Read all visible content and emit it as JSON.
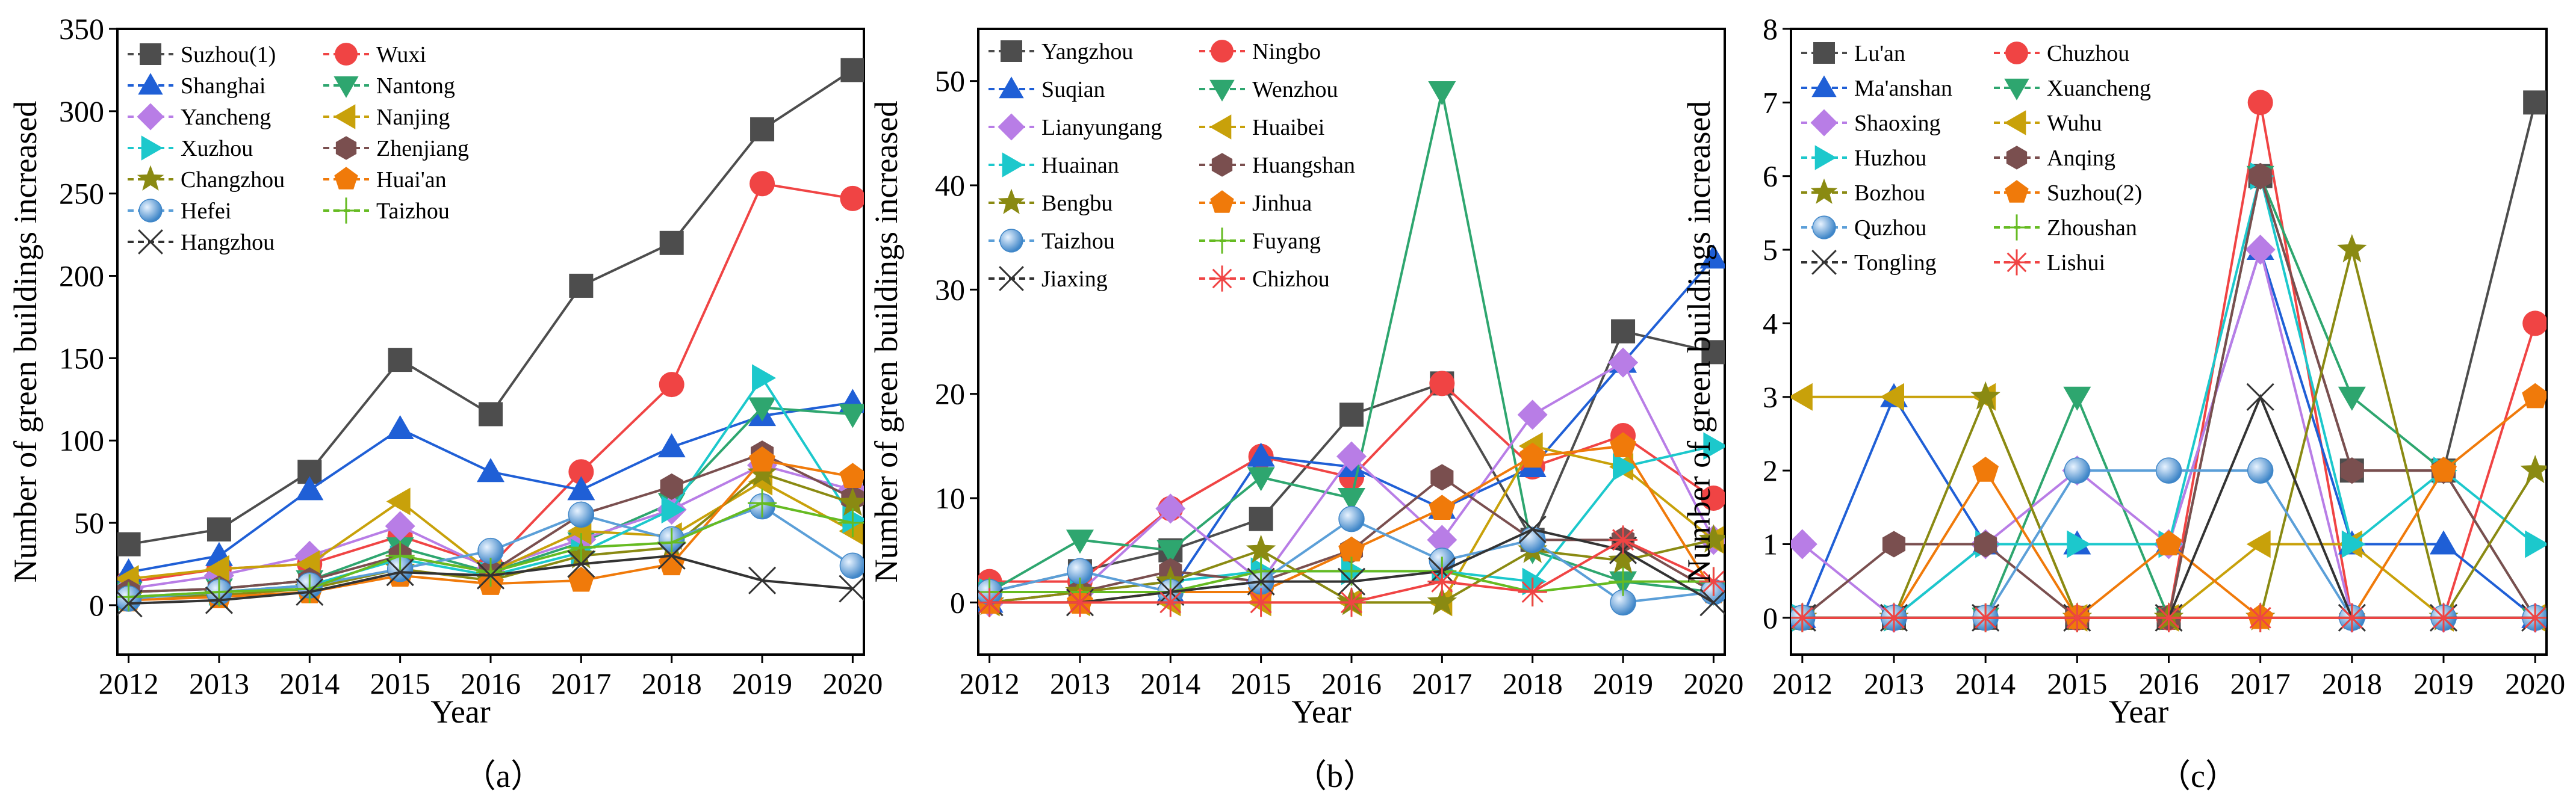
{
  "captions": [
    "（a）",
    "（b）",
    "（c）"
  ],
  "chart_data": [
    {
      "type": "line",
      "panel_label": "（a）",
      "xlabel": "Year",
      "ylabel": "Number of green buildings increased",
      "ylim": [
        -30,
        350
      ],
      "yticks": [
        0,
        50,
        100,
        150,
        200,
        250,
        300,
        350
      ],
      "x": [
        2012,
        2013,
        2014,
        2015,
        2016,
        2017,
        2018,
        2019,
        2020
      ],
      "legend_position": "top-left",
      "series": [
        {
          "name": "Suzhou(1)",
          "color": "#4d4d4d",
          "marker": "square",
          "values": [
            37,
            46,
            81,
            149,
            116,
            194,
            220,
            289,
            325
          ]
        },
        {
          "name": "Wuxi",
          "color": "#f04444",
          "marker": "circle",
          "values": [
            14,
            22,
            25,
            42,
            24,
            81,
            134,
            256,
            247
          ]
        },
        {
          "name": "Shanghai",
          "color": "#1f5fd6",
          "marker": "triangle-up",
          "values": [
            20,
            30,
            70,
            107,
            81,
            70,
            96,
            115,
            123
          ]
        },
        {
          "name": "Nantong",
          "color": "#2ea66f",
          "marker": "triangle-down",
          "values": [
            8,
            10,
            15,
            35,
            20,
            38,
            62,
            120,
            116
          ]
        },
        {
          "name": "Yancheng",
          "color": "#b87de6",
          "marker": "diamond",
          "values": [
            10,
            18,
            30,
            48,
            22,
            40,
            58,
            85,
            70
          ]
        },
        {
          "name": "Nanjing",
          "color": "#c8a10a",
          "marker": "triangle-left",
          "values": [
            16,
            22,
            25,
            63,
            20,
            45,
            42,
            75,
            45
          ]
        },
        {
          "name": "Xuzhou",
          "color": "#1cc8cc",
          "marker": "triangle-right",
          "values": [
            5,
            8,
            12,
            28,
            18,
            32,
            58,
            138,
            52
          ]
        },
        {
          "name": "Zhenjiang",
          "color": "#7a4f4f",
          "marker": "hexagon",
          "values": [
            8,
            10,
            15,
            30,
            20,
            55,
            72,
            92,
            65
          ]
        },
        {
          "name": "Changzhou",
          "color": "#8a8a12",
          "marker": "star",
          "values": [
            5,
            6,
            10,
            22,
            15,
            30,
            35,
            80,
            62
          ]
        },
        {
          "name": "Huai'an",
          "color": "#f07a0a",
          "marker": "pentagon",
          "values": [
            3,
            5,
            8,
            18,
            13,
            15,
            25,
            88,
            78
          ]
        },
        {
          "name": "Hefei",
          "color": "#5b9fd8",
          "marker": "sphere",
          "values": [
            4,
            8,
            12,
            22,
            33,
            55,
            40,
            60,
            24
          ]
        },
        {
          "name": "Taizhou",
          "color": "#66bb22",
          "marker": "plus",
          "values": [
            5,
            8,
            10,
            30,
            20,
            35,
            38,
            62,
            50
          ]
        },
        {
          "name": "Hangzhou",
          "color": "#333333",
          "marker": "x",
          "values": [
            1,
            3,
            8,
            20,
            18,
            25,
            30,
            15,
            10
          ]
        }
      ]
    },
    {
      "type": "line",
      "panel_label": "（b）",
      "xlabel": "Year",
      "ylabel": "Number of green buildings increased",
      "ylim": [
        -5,
        55
      ],
      "yticks": [
        0,
        10,
        20,
        30,
        40,
        50
      ],
      "x": [
        2012,
        2013,
        2014,
        2015,
        2016,
        2017,
        2018,
        2019,
        2020
      ],
      "legend_position": "top-left",
      "series": [
        {
          "name": "Yangzhou",
          "color": "#4d4d4d",
          "marker": "square",
          "values": [
            1,
            3,
            5,
            8,
            18,
            21,
            6,
            26,
            24
          ]
        },
        {
          "name": "Ningbo",
          "color": "#f04444",
          "marker": "circle",
          "values": [
            2,
            2,
            9,
            14,
            12,
            21,
            13,
            16,
            10
          ]
        },
        {
          "name": "Suqian",
          "color": "#1f5fd6",
          "marker": "triangle-up",
          "values": [
            0,
            1,
            1,
            14,
            13,
            9,
            13,
            23,
            33
          ]
        },
        {
          "name": "Wenzhou",
          "color": "#2ea66f",
          "marker": "triangle-down",
          "values": [
            1,
            6,
            5,
            12,
            10,
            49,
            5,
            2,
            1
          ]
        },
        {
          "name": "Lianyungang",
          "color": "#b87de6",
          "marker": "diamond",
          "values": [
            0,
            1,
            9,
            2,
            14,
            6,
            18,
            23,
            6
          ]
        },
        {
          "name": "Huaibei",
          "color": "#c8a10a",
          "marker": "triangle-left",
          "values": [
            0,
            0,
            0,
            0,
            0,
            0,
            15,
            13,
            6
          ]
        },
        {
          "name": "Huainan",
          "color": "#1cc8cc",
          "marker": "triangle-right",
          "values": [
            1,
            1,
            2,
            3,
            3,
            3,
            2,
            13,
            15
          ]
        },
        {
          "name": "Huangshan",
          "color": "#7a4f4f",
          "marker": "hexagon",
          "values": [
            1,
            1,
            3,
            2,
            5,
            12,
            6,
            6,
            1
          ]
        },
        {
          "name": "Bengbu",
          "color": "#8a8a12",
          "marker": "star",
          "values": [
            0,
            1,
            2,
            5,
            0,
            0,
            5,
            4,
            6
          ]
        },
        {
          "name": "Jinhua",
          "color": "#f07a0a",
          "marker": "pentagon",
          "values": [
            0,
            0,
            1,
            1,
            5,
            9,
            14,
            15,
            1
          ]
        },
        {
          "name": "Taizhou",
          "color": "#5b9fd8",
          "marker": "sphere",
          "values": [
            1,
            3,
            1,
            2,
            8,
            4,
            6,
            0,
            1
          ]
        },
        {
          "name": "Fuyang",
          "color": "#66bb22",
          "marker": "plus",
          "values": [
            1,
            1,
            1,
            3,
            3,
            3,
            1,
            2,
            2
          ]
        },
        {
          "name": "Jiaxing",
          "color": "#333333",
          "marker": "x",
          "values": [
            0,
            0,
            1,
            2,
            2,
            3,
            7,
            5,
            0
          ]
        },
        {
          "name": "Chizhou",
          "color": "#f04444",
          "marker": "asterisk",
          "values": [
            0,
            0,
            0,
            0,
            0,
            2,
            1,
            6,
            2
          ]
        }
      ]
    },
    {
      "type": "line",
      "panel_label": "（c）",
      "xlabel": "Year",
      "ylabel": "Number of green buildings increased",
      "ylim": [
        -0.5,
        8
      ],
      "yticks": [
        0,
        1,
        2,
        3,
        4,
        5,
        6,
        7,
        8
      ],
      "x": [
        2012,
        2013,
        2014,
        2015,
        2016,
        2017,
        2018,
        2019,
        2020
      ],
      "legend_position": "top-left",
      "series": [
        {
          "name": "Lu'an",
          "color": "#4d4d4d",
          "marker": "square",
          "values": [
            0,
            0,
            0,
            0,
            0,
            6,
            2,
            2,
            7
          ]
        },
        {
          "name": "Chuzhou",
          "color": "#f04444",
          "marker": "circle",
          "values": [
            0,
            0,
            0,
            0,
            0,
            7,
            0,
            0,
            4
          ]
        },
        {
          "name": "Ma'anshan",
          "color": "#1f5fd6",
          "marker": "triangle-up",
          "values": [
            0,
            3,
            1,
            1,
            1,
            5,
            1,
            1,
            0
          ]
        },
        {
          "name": "Xuancheng",
          "color": "#2ea66f",
          "marker": "triangle-down",
          "values": [
            0,
            0,
            0,
            3,
            0,
            6,
            3,
            2,
            0
          ]
        },
        {
          "name": "Shaoxing",
          "color": "#b87de6",
          "marker": "diamond",
          "values": [
            1,
            0,
            1,
            2,
            1,
            5,
            0,
            0,
            0
          ]
        },
        {
          "name": "Wuhu",
          "color": "#c8a10a",
          "marker": "triangle-left",
          "values": [
            3,
            3,
            3,
            0,
            0,
            1,
            1,
            0,
            0
          ]
        },
        {
          "name": "Huzhou",
          "color": "#1cc8cc",
          "marker": "triangle-right",
          "values": [
            0,
            0,
            1,
            1,
            1,
            6,
            1,
            2,
            1
          ]
        },
        {
          "name": "Anqing",
          "color": "#7a4f4f",
          "marker": "hexagon",
          "values": [
            0,
            1,
            1,
            0,
            0,
            6,
            2,
            2,
            0
          ]
        },
        {
          "name": "Bozhou",
          "color": "#8a8a12",
          "marker": "star",
          "values": [
            0,
            0,
            3,
            0,
            0,
            0,
            5,
            0,
            2
          ]
        },
        {
          "name": "Suzhou(2)",
          "color": "#f07a0a",
          "marker": "pentagon",
          "values": [
            0,
            0,
            2,
            0,
            1,
            0,
            0,
            2,
            3
          ]
        },
        {
          "name": "Quzhou",
          "color": "#5b9fd8",
          "marker": "sphere",
          "values": [
            0,
            0,
            0,
            2,
            2,
            2,
            0,
            0,
            0
          ]
        },
        {
          "name": "Zhoushan",
          "color": "#66bb22",
          "marker": "plus",
          "values": [
            0,
            0,
            0,
            0,
            0,
            0,
            0,
            0,
            0
          ]
        },
        {
          "name": "Tongling",
          "color": "#333333",
          "marker": "x",
          "values": [
            0,
            0,
            0,
            0,
            0,
            3,
            0,
            0,
            0
          ]
        },
        {
          "name": "Lishui",
          "color": "#f04444",
          "marker": "asterisk",
          "values": [
            0,
            0,
            0,
            0,
            0,
            0,
            0,
            0,
            0
          ]
        }
      ]
    }
  ]
}
